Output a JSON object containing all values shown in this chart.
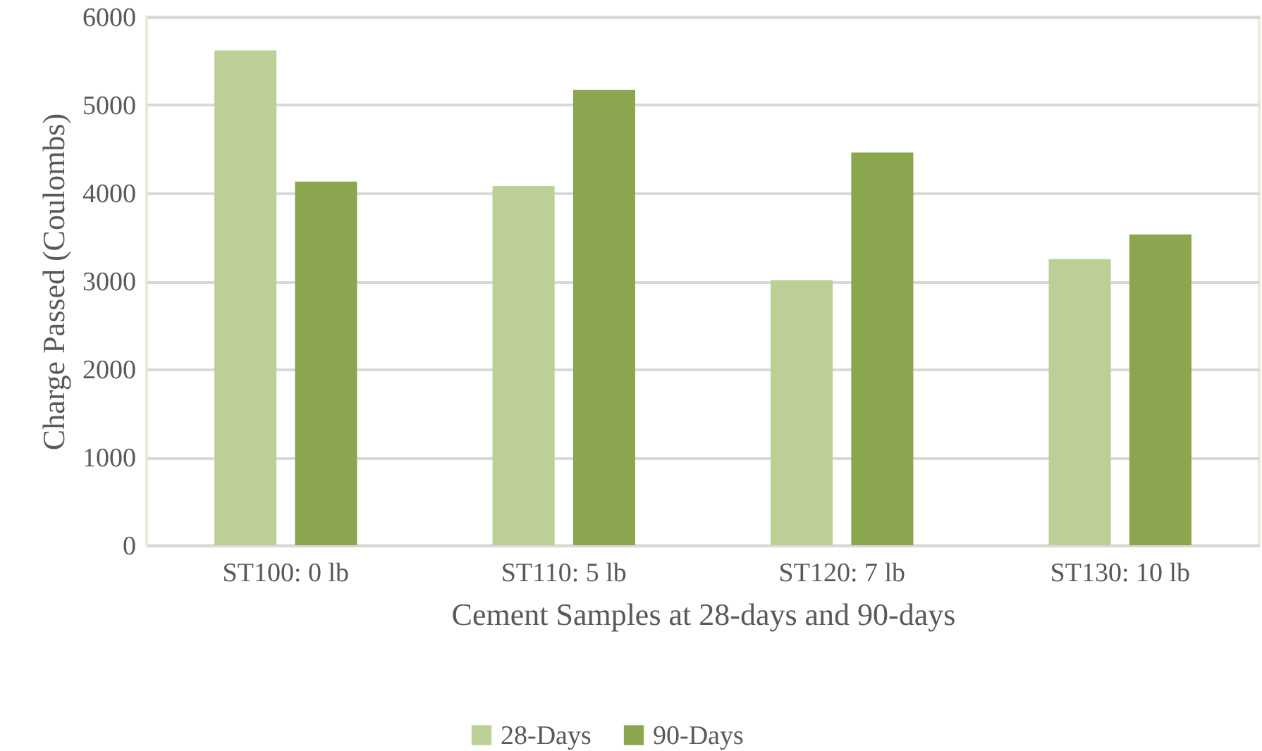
{
  "chart_data": {
    "type": "bar",
    "xlabel": "Cement Samples at 28-days and 90-days",
    "ylabel": "Charge Passed (Coulombs)",
    "categories": [
      "ST100: 0 lb",
      "ST110: 5 lb",
      "ST120: 7 lb",
      "ST130: 10 lb"
    ],
    "series": [
      {
        "name": "28-Days",
        "color": "#bbcf97",
        "values": [
          5620,
          4080,
          3010,
          3250
        ]
      },
      {
        "name": "90-Days",
        "color": "#8aa64f",
        "values": [
          4130,
          5170,
          4460,
          3530
        ]
      }
    ],
    "ylim": [
      0,
      6000
    ],
    "yticks": [
      0,
      {
        "value": 1000,
        "label": "1000"
      },
      {
        "value": 2000,
        "label": "2000"
      },
      {
        "value": 3000,
        "label": "3000"
      },
      {
        "value": 4000,
        "label": "4000"
      },
      {
        "value": 5000,
        "label": "5000"
      },
      {
        "value": 6000,
        "label": "6000"
      }
    ],
    "grid": "y",
    "legend": "bottom"
  }
}
